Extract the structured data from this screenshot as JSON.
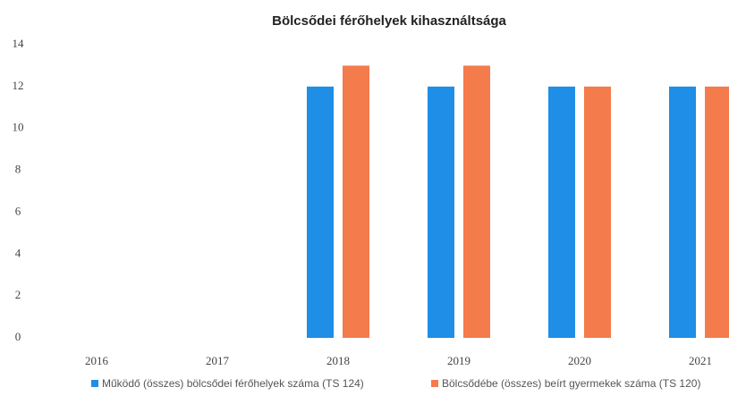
{
  "chart_data": {
    "type": "bar",
    "title": "Bölcsődei férőhelyek kihasználtsága",
    "categories": [
      "2016",
      "2017",
      "2018",
      "2019",
      "2020",
      "2021"
    ],
    "series": [
      {
        "name": "Működő (összes) bölcsődei férőhelyek száma (TS 124)",
        "color": "#1e8ee6",
        "values": [
          0,
          0,
          12,
          12,
          12,
          12
        ]
      },
      {
        "name": "Bölcsődébe (összes) beírt gyermekek száma (TS 120)",
        "color": "#f47b4b",
        "values": [
          0,
          0,
          13,
          13,
          12,
          12
        ]
      }
    ],
    "ylim": [
      0,
      14
    ],
    "yticks": [
      0,
      2,
      4,
      6,
      8,
      10,
      12,
      14
    ],
    "grid": false,
    "legend": "bottom"
  }
}
